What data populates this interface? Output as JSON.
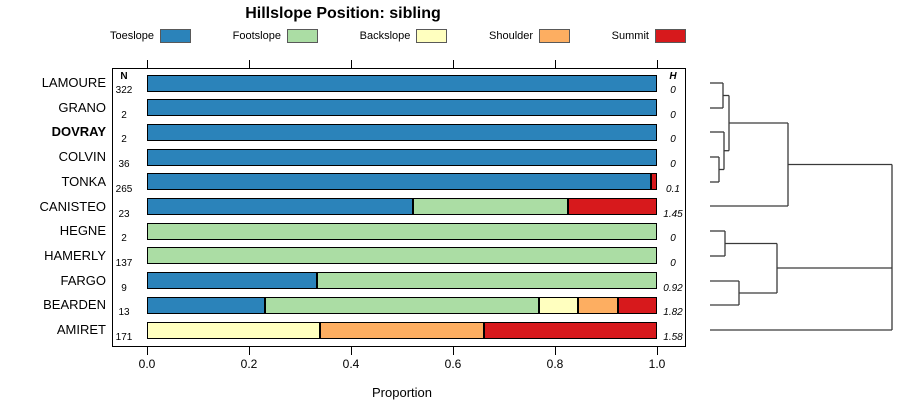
{
  "title": "Hillslope Position: sibling",
  "columns": {
    "n_header": "N",
    "h_header": "H"
  },
  "axis": {
    "label": "Proportion",
    "tick_labels": [
      "0.0",
      "0.2",
      "0.4",
      "0.6",
      "0.8",
      "1.0"
    ],
    "tick_values": [
      0,
      0.2,
      0.4,
      0.6,
      0.8,
      1.0
    ]
  },
  "legend": {
    "position": "top",
    "items": [
      {
        "label": "Toeslope",
        "color": "#2B83BA"
      },
      {
        "label": "Footslope",
        "color": "#ABDDA4"
      },
      {
        "label": "Backslope",
        "color": "#FFFFBF"
      },
      {
        "label": "Shoulder",
        "color": "#FDAE61"
      },
      {
        "label": "Summit",
        "color": "#D7191C"
      }
    ]
  },
  "chart_data": {
    "type": "bar",
    "orientation": "horizontal-stacked",
    "title": "Hillslope Position: sibling",
    "xlabel": "Proportion",
    "xlim": [
      0,
      1
    ],
    "grid": false,
    "classes": [
      "Toeslope",
      "Footslope",
      "Backslope",
      "Shoulder",
      "Summit"
    ],
    "categories": [
      "LAMOURE",
      "GRANO",
      "DOVRAY",
      "COLVIN",
      "TONKA",
      "CANISTEO",
      "HEGNE",
      "HAMERLY",
      "FARGO",
      "BEARDEN",
      "AMIRET"
    ],
    "rows": [
      {
        "name": "LAMOURE",
        "n": "322",
        "h": "0",
        "bold": false,
        "segments": [
          {
            "cls": "Toeslope",
            "p": 1.0
          }
        ]
      },
      {
        "name": "GRANO",
        "n": "2",
        "h": "0",
        "bold": false,
        "segments": [
          {
            "cls": "Toeslope",
            "p": 1.0
          }
        ]
      },
      {
        "name": "DOVRAY",
        "n": "2",
        "h": "0",
        "bold": true,
        "segments": [
          {
            "cls": "Toeslope",
            "p": 1.0
          }
        ]
      },
      {
        "name": "COLVIN",
        "n": "36",
        "h": "0",
        "bold": false,
        "segments": [
          {
            "cls": "Toeslope",
            "p": 1.0
          }
        ]
      },
      {
        "name": "TONKA",
        "n": "265",
        "h": "0.1",
        "bold": false,
        "segments": [
          {
            "cls": "Toeslope",
            "p": 0.988
          },
          {
            "cls": "Summit",
            "p": 0.012
          }
        ]
      },
      {
        "name": "CANISTEO",
        "n": "23",
        "h": "1.45",
        "bold": false,
        "segments": [
          {
            "cls": "Toeslope",
            "p": 0.522
          },
          {
            "cls": "Footslope",
            "p": 0.304
          },
          {
            "cls": "Summit",
            "p": 0.174
          }
        ]
      },
      {
        "name": "HEGNE",
        "n": "2",
        "h": "0",
        "bold": false,
        "segments": [
          {
            "cls": "Footslope",
            "p": 1.0
          }
        ]
      },
      {
        "name": "HAMERLY",
        "n": "137",
        "h": "0",
        "bold": false,
        "segments": [
          {
            "cls": "Footslope",
            "p": 1.0
          }
        ]
      },
      {
        "name": "FARGO",
        "n": "9",
        "h": "0.92",
        "bold": false,
        "segments": [
          {
            "cls": "Toeslope",
            "p": 0.333
          },
          {
            "cls": "Footslope",
            "p": 0.667
          }
        ]
      },
      {
        "name": "BEARDEN",
        "n": "13",
        "h": "1.82",
        "bold": false,
        "segments": [
          {
            "cls": "Toeslope",
            "p": 0.231
          },
          {
            "cls": "Footslope",
            "p": 0.538
          },
          {
            "cls": "Backslope",
            "p": 0.077
          },
          {
            "cls": "Shoulder",
            "p": 0.077
          },
          {
            "cls": "Summit",
            "p": 0.077
          }
        ]
      },
      {
        "name": "AMIRET",
        "n": "171",
        "h": "1.58",
        "bold": false,
        "segments": [
          {
            "cls": "Backslope",
            "p": 0.34
          },
          {
            "cls": "Shoulder",
            "p": 0.32
          },
          {
            "cls": "Summit",
            "p": 0.34
          }
        ]
      }
    ],
    "dendrogram_segments": [
      [
        710,
        83,
        723,
        83
      ],
      [
        710,
        108,
        723,
        108
      ],
      [
        723,
        83,
        723,
        108
      ],
      [
        723,
        95.5,
        729,
        95.5
      ],
      [
        710,
        132,
        724,
        132
      ],
      [
        710,
        157,
        719,
        157
      ],
      [
        710,
        182,
        719,
        182
      ],
      [
        719,
        157,
        719,
        182
      ],
      [
        719,
        169.5,
        724,
        169.5
      ],
      [
        724,
        132,
        724,
        169.5
      ],
      [
        724,
        150.7,
        729,
        150.7
      ],
      [
        729,
        95.5,
        729,
        150.7
      ],
      [
        729,
        123,
        788,
        123
      ],
      [
        710,
        206,
        788,
        206
      ],
      [
        788,
        123,
        788,
        206
      ],
      [
        788,
        164.5,
        892,
        164.5
      ],
      [
        710,
        231,
        725,
        231
      ],
      [
        710,
        256,
        725,
        256
      ],
      [
        725,
        231,
        725,
        256
      ],
      [
        725,
        243.5,
        777,
        243.5
      ],
      [
        710,
        281,
        739,
        281
      ],
      [
        710,
        305,
        739,
        305
      ],
      [
        739,
        281,
        739,
        305
      ],
      [
        739,
        293,
        777,
        293
      ],
      [
        777,
        243.5,
        777,
        293
      ],
      [
        777,
        268,
        892,
        268
      ],
      [
        710,
        330,
        892,
        330
      ],
      [
        892,
        164.5,
        892,
        330
      ]
    ]
  }
}
